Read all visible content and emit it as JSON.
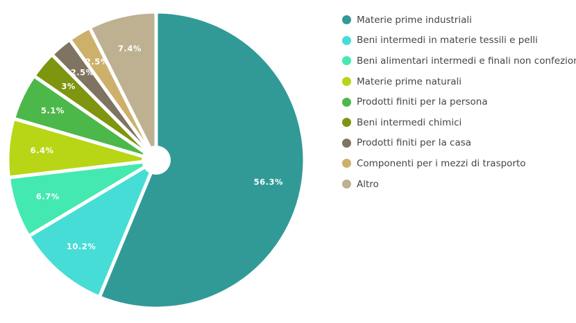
{
  "chart_data": {
    "type": "pie",
    "title": "",
    "legend_position": "right",
    "slices": [
      {
        "label": "Materie prime industriali",
        "value": 56.3,
        "display": "56.3%",
        "color": "#319a96"
      },
      {
        "label": "Beni intermedi in materie tessili e pelli",
        "value": 10.2,
        "display": "10.2%",
        "color": "#46ddd6"
      },
      {
        "label": "Beni alimentari intermedi e finali non confezionati",
        "value": 6.7,
        "display": "6.7%",
        "color": "#43e9b1"
      },
      {
        "label": "Materie prime naturali",
        "value": 6.4,
        "display": "6.4%",
        "color": "#b8d615"
      },
      {
        "label": "Prodotti finiti per la persona",
        "value": 5.1,
        "display": "5.1%",
        "color": "#4db84a"
      },
      {
        "label": "Beni intermedi chimici",
        "value": 3,
        "display": "3%",
        "color": "#7e950f"
      },
      {
        "label": "Prodotti finiti per la casa",
        "value": 2.5,
        "display": "2.5%",
        "color": "#7f7361"
      },
      {
        "label": "Componenti per i mezzi di trasporto",
        "value": 2.5,
        "display": "2.5%",
        "color": "#cdb06a"
      },
      {
        "label": "Altro",
        "value": 7.4,
        "display": "7.4%",
        "color": "#bdb191"
      }
    ]
  }
}
